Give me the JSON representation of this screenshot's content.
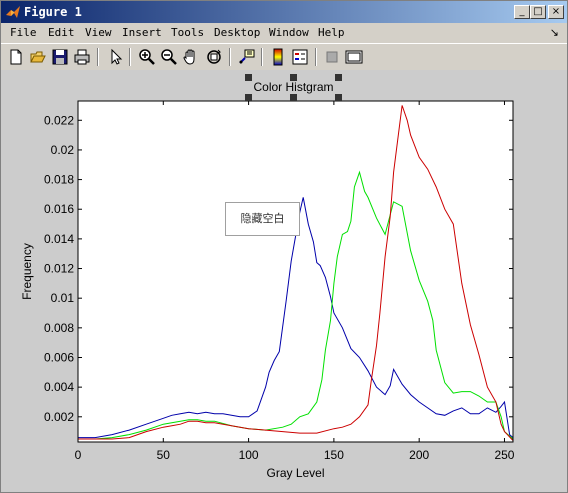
{
  "window": {
    "title": "Figure 1",
    "controls": {
      "minimize": "_",
      "maximize": "□",
      "close": "×"
    }
  },
  "menubar": {
    "items": [
      "File",
      "Edit",
      "View",
      "Insert",
      "Tools",
      "Desktop",
      "Window",
      "Help"
    ],
    "dock_arrow": "↘"
  },
  "toolbar": {
    "icons": [
      "new-figure-icon",
      "open-file-icon",
      "save-icon",
      "print-icon",
      "pointer-icon",
      "zoom-in-icon",
      "zoom-out-icon",
      "pan-hand-icon",
      "rotate-3d-icon",
      "data-cursor-icon",
      "colorbar-icon",
      "legend-icon",
      "hide-plot-tools-icon",
      "show-plot-tools-icon"
    ]
  },
  "popup": {
    "text": "隐藏空白"
  },
  "colors": {
    "red": "#cc0000",
    "green": "#00e000",
    "blue": "#0000aa"
  },
  "chart_data": {
    "type": "line",
    "title": "Color Histgram",
    "xlabel": "Gray Level",
    "ylabel": "Frequency",
    "xlim": [
      0,
      255
    ],
    "ylim": [
      0.0003,
      0.0233
    ],
    "xticks": [
      0,
      50,
      100,
      150,
      200,
      250
    ],
    "xtick_labels": [
      "0",
      "50",
      "100",
      "150",
      "200",
      "250"
    ],
    "yticks": [
      0.002,
      0.004,
      0.006,
      0.008,
      0.01,
      0.012,
      0.014,
      0.016,
      0.018,
      0.02,
      0.022
    ],
    "ytick_labels": [
      "0.002",
      "0.004",
      "0.006",
      "0.008",
      "0.01",
      "0.012",
      "0.014",
      "0.016",
      "0.018",
      "0.02",
      "0.022"
    ],
    "grid": false,
    "series": [
      {
        "color": "#0000aa",
        "x": [
          0,
          10,
          20,
          30,
          40,
          50,
          55,
          60,
          65,
          70,
          75,
          80,
          85,
          90,
          95,
          100,
          105,
          110,
          112,
          115,
          118,
          120,
          122,
          125,
          128,
          130,
          132,
          135,
          138,
          140,
          142,
          145,
          148,
          150,
          155,
          160,
          165,
          170,
          175,
          180,
          183,
          185,
          190,
          195,
          200,
          205,
          210,
          215,
          220,
          225,
          230,
          235,
          240,
          245,
          248,
          250,
          253,
          255
        ],
        "y": [
          0.0006,
          0.0006,
          0.0008,
          0.0011,
          0.0015,
          0.0019,
          0.0021,
          0.0022,
          0.0023,
          0.0022,
          0.0023,
          0.0022,
          0.0022,
          0.0021,
          0.002,
          0.002,
          0.0024,
          0.004,
          0.005,
          0.0058,
          0.0064,
          0.0081,
          0.0098,
          0.0125,
          0.0145,
          0.0158,
          0.0168,
          0.015,
          0.0138,
          0.0124,
          0.0122,
          0.0114,
          0.0101,
          0.009,
          0.008,
          0.0066,
          0.006,
          0.0051,
          0.004,
          0.0035,
          0.0041,
          0.0052,
          0.0042,
          0.0035,
          0.003,
          0.0026,
          0.0022,
          0.0021,
          0.0024,
          0.0026,
          0.0022,
          0.0022,
          0.0026,
          0.0023,
          0.0027,
          0.003,
          0.0008,
          0.0006
        ]
      },
      {
        "color": "#00e000",
        "x": [
          0,
          10,
          20,
          30,
          40,
          50,
          55,
          60,
          65,
          70,
          75,
          80,
          90,
          100,
          110,
          120,
          125,
          130,
          135,
          140,
          143,
          145,
          148,
          150,
          152,
          155,
          158,
          160,
          162,
          165,
          168,
          170,
          175,
          180,
          185,
          190,
          195,
          200,
          205,
          208,
          210,
          215,
          220,
          225,
          230,
          235,
          240,
          245,
          248,
          250,
          255
        ],
        "y": [
          0.0005,
          0.0005,
          0.0006,
          0.0008,
          0.0011,
          0.0015,
          0.0016,
          0.0017,
          0.0018,
          0.0018,
          0.0017,
          0.0017,
          0.0014,
          0.0012,
          0.0011,
          0.0013,
          0.0015,
          0.002,
          0.0022,
          0.003,
          0.0045,
          0.0065,
          0.0085,
          0.011,
          0.0128,
          0.0143,
          0.0145,
          0.0152,
          0.0175,
          0.0185,
          0.0172,
          0.0168,
          0.0154,
          0.0143,
          0.0165,
          0.0162,
          0.0132,
          0.0112,
          0.0098,
          0.0085,
          0.0065,
          0.0043,
          0.0036,
          0.0037,
          0.0037,
          0.0034,
          0.003,
          0.003,
          0.002,
          0.001,
          0.0005
        ]
      },
      {
        "color": "#cc0000",
        "x": [
          0,
          10,
          20,
          30,
          40,
          50,
          55,
          60,
          65,
          70,
          75,
          80,
          90,
          100,
          110,
          120,
          130,
          140,
          150,
          155,
          160,
          165,
          170,
          172,
          175,
          177,
          180,
          183,
          185,
          188,
          190,
          193,
          195,
          200,
          205,
          210,
          215,
          220,
          225,
          230,
          235,
          240,
          245,
          248,
          250,
          255
        ],
        "y": [
          0.0005,
          0.0005,
          0.0005,
          0.0006,
          0.001,
          0.0013,
          0.0014,
          0.0015,
          0.0017,
          0.0017,
          0.0016,
          0.0016,
          0.0014,
          0.0012,
          0.0011,
          0.001,
          0.0009,
          0.0009,
          0.0012,
          0.0013,
          0.0015,
          0.002,
          0.0028,
          0.0045,
          0.0068,
          0.009,
          0.0128,
          0.0155,
          0.0185,
          0.0212,
          0.023,
          0.022,
          0.021,
          0.0195,
          0.0187,
          0.0175,
          0.016,
          0.015,
          0.011,
          0.0082,
          0.0062,
          0.004,
          0.003,
          0.0015,
          0.001,
          0.0004
        ]
      }
    ]
  }
}
